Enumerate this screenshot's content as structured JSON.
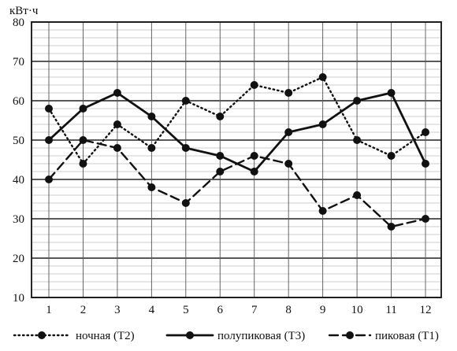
{
  "chart_data": {
    "type": "line",
    "ylabel": "кВт·ч",
    "ylim": [
      10,
      80
    ],
    "y_ticks": [
      10,
      20,
      30,
      40,
      50,
      60,
      70,
      80
    ],
    "grid": true,
    "legend_position": "bottom",
    "categories": [
      "1",
      "2",
      "3",
      "4",
      "5",
      "6",
      "7",
      "8",
      "9",
      "10",
      "11",
      "12"
    ],
    "series": [
      {
        "name": "ночная (Т2)",
        "line_style": "dotted",
        "color": "#111111",
        "values": [
          58,
          44,
          54,
          48,
          60,
          56,
          64,
          62,
          66,
          50,
          46,
          52
        ]
      },
      {
        "name": "полупиковая (Т3)",
        "line_style": "solid",
        "color": "#111111",
        "values": [
          50,
          58,
          62,
          56,
          48,
          46,
          42,
          52,
          54,
          60,
          62,
          44
        ]
      },
      {
        "name": "пиковая (Т1)",
        "line_style": "dashed",
        "color": "#111111",
        "values": [
          40,
          50,
          48,
          38,
          34,
          42,
          46,
          44,
          32,
          36,
          28,
          30
        ]
      }
    ]
  }
}
